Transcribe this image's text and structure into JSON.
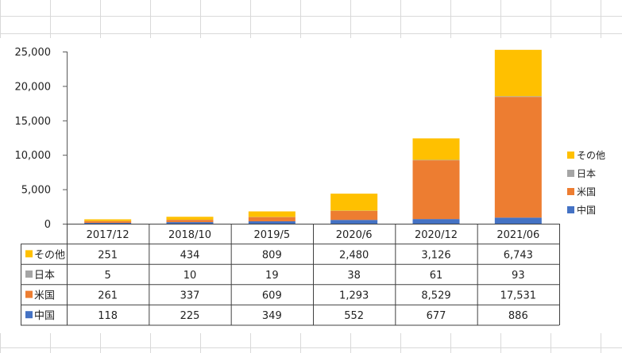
{
  "chart_data": {
    "type": "bar",
    "stacked": true,
    "categories": [
      "2017/12",
      "2018/10",
      "2019/5",
      "2020/6",
      "2020/12",
      "2021/06"
    ],
    "ylim": [
      0,
      25000
    ],
    "yticks": [
      0,
      5000,
      10000,
      15000,
      20000,
      25000
    ],
    "ytick_labels": [
      "0",
      "5,000",
      "10,000",
      "15,000",
      "20,000",
      "25,000"
    ],
    "series": [
      {
        "name": "中国",
        "color": "#4472C4",
        "values": [
          118,
          225,
          349,
          552,
          677,
          886
        ],
        "labels": [
          "118",
          "225",
          "349",
          "552",
          "677",
          "886"
        ]
      },
      {
        "name": "米国",
        "color": "#ED7D31",
        "values": [
          261,
          337,
          609,
          1293,
          8529,
          17531
        ],
        "labels": [
          "261",
          "337",
          "609",
          "1,293",
          "8,529",
          "17,531"
        ]
      },
      {
        "name": "日本",
        "color": "#A5A5A5",
        "values": [
          5,
          10,
          19,
          38,
          61,
          93
        ],
        "labels": [
          "5",
          "10",
          "19",
          "38",
          "61",
          "93"
        ]
      },
      {
        "name": "その他",
        "color": "#FFC000",
        "values": [
          251,
          434,
          809,
          2480,
          3126,
          6743
        ],
        "labels": [
          "251",
          "434",
          "809",
          "2,480",
          "3,126",
          "6,743"
        ]
      }
    ],
    "legend_position": "right",
    "data_table": true
  }
}
